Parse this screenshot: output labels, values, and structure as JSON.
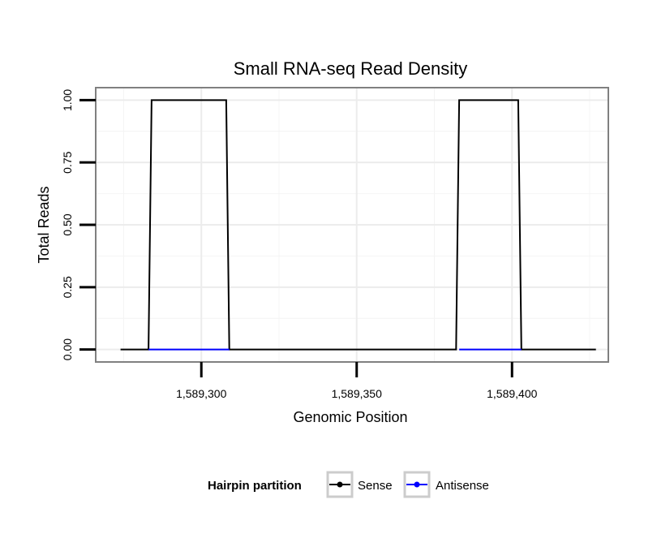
{
  "chart_data": {
    "type": "line",
    "title": "Small RNA-seq Read Density",
    "xlabel": "Genomic Position",
    "ylabel": "Total Reads",
    "xlim": [
      1589266,
      1589431
    ],
    "ylim": [
      -0.05,
      1.05
    ],
    "x_ticks": [
      1589300,
      1589350,
      1589400
    ],
    "x_tick_labels": [
      "1,589,300",
      "1,589,350",
      "1,589,400"
    ],
    "y_ticks": [
      0,
      0.25,
      0.5,
      0.75,
      1
    ],
    "y_tick_labels": [
      "0.00",
      "0.25",
      "0.50",
      "0.75",
      "1.00"
    ],
    "grid": true,
    "series": [
      {
        "name": "Sense",
        "color": "#000000",
        "x": [
          1589274,
          1589283,
          1589284,
          1589308,
          1589309,
          1589382,
          1589383,
          1589402,
          1589403,
          1589427
        ],
        "y": [
          0,
          0,
          1,
          1,
          0,
          0,
          1,
          1,
          0,
          0
        ]
      },
      {
        "name": "Antisense",
        "color": "#0000ff",
        "x": [
          1589283,
          1589309,
          1589383,
          1589403
        ],
        "y": [
          0,
          0,
          0,
          0
        ],
        "segments": [
          [
            0,
            1
          ],
          [
            2,
            3
          ]
        ]
      }
    ],
    "legend": {
      "title": "Hairpin partition",
      "position": "bottom",
      "entries": [
        "Sense",
        "Antisense"
      ]
    }
  }
}
